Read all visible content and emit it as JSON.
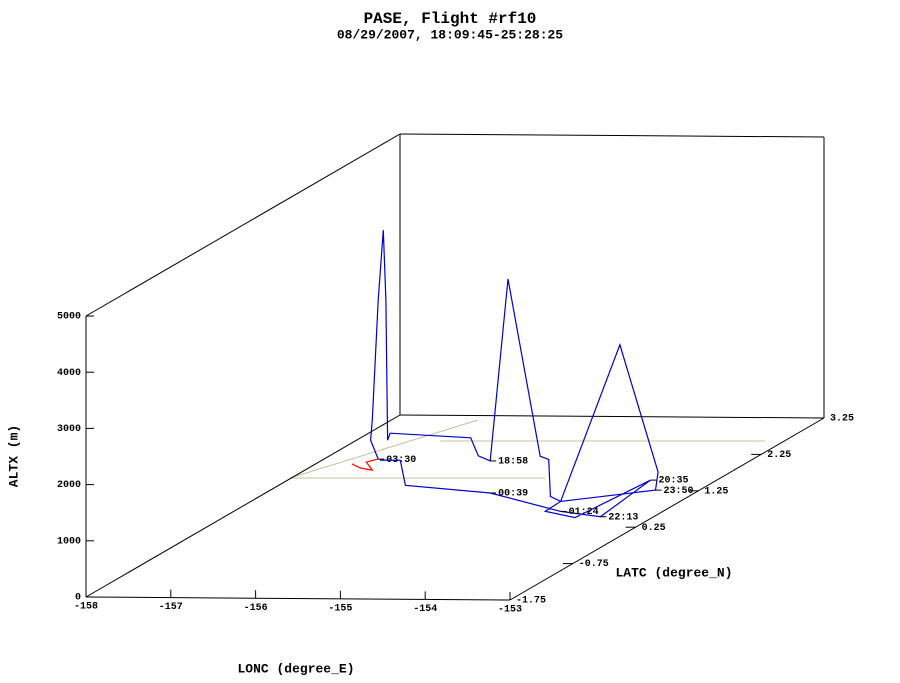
{
  "chart_data": {
    "type": "line3d",
    "title": "PASE, Flight #rf10",
    "subtitle": "08/29/2007, 18:09:45-25:28:25",
    "x_label": "LONC (degree_E)",
    "y_label": "LATC (degree_N)",
    "z_label": "ALTX (m)",
    "xlim": [
      -158,
      -153
    ],
    "xticks": [
      -158,
      -157,
      -156,
      -155,
      -154,
      -153
    ],
    "ylim": [
      -1.75,
      3.25
    ],
    "yticks": [
      -1.75,
      -0.75,
      0.25,
      1.25,
      2.25,
      3.25
    ],
    "zlim": [
      0,
      5000
    ],
    "zticks": [
      0,
      1000,
      2000,
      3000,
      4000,
      5000
    ],
    "series": [
      {
        "color": "#ff0000",
        "x": [
          -156.53,
          -156.43,
          -156.29,
          -156.36,
          -156.22
        ],
        "y": [
          0.5,
          0.5,
          0.5,
          0.5,
          0.5
        ],
        "z": [
          926,
          854,
          819,
          961,
          1015
        ],
        "time_labels": [
          null,
          null,
          null,
          null,
          "03:30"
        ]
      },
      {
        "color": "#0000cc",
        "x": [
          -156.22,
          -156.31,
          -156.29,
          -156.22,
          -156.16,
          -156.13,
          -156.11,
          -156.08,
          -155.13,
          -155.04,
          -154.9,
          -154.69,
          -154.31,
          -154.21,
          -154.19,
          -154.07,
          -153.37,
          -152.92,
          -152.95,
          -154.07,
          -154.25,
          -153.9,
          -153.01,
          -153.6,
          -154.07,
          -154.9,
          -155.9,
          -155.96,
          -156.2
        ],
        "y": [
          0.5,
          0.5,
          0.5,
          0.5,
          0.5,
          0.5,
          0.5,
          0.5,
          0.5,
          0.5,
          0.5,
          0.5,
          0.5,
          0.5,
          0.5,
          0.5,
          0.5,
          0.5,
          0.5,
          0.5,
          0.5,
          0.5,
          0.5,
          0.5,
          0.5,
          0.5,
          0.5,
          0.5,
          0.5
        ],
        "z": [
          1015,
          1353,
          1709,
          3845,
          5090,
          3845,
          1353,
          1477,
          1406,
          1086,
          997,
          4236,
          1086,
          1032,
          374,
          285,
          3079,
          819,
          498,
          285,
          107,
          0,
          676,
          18,
          107,
          427,
          552,
          997,
          997
        ],
        "time_labels": [
          null,
          null,
          null,
          null,
          null,
          null,
          null,
          null,
          null,
          null,
          "18:58",
          null,
          null,
          null,
          null,
          null,
          null,
          null,
          "23:50",
          null,
          null,
          null,
          "20:35",
          "22:13",
          "01:24",
          "00:39",
          null,
          null,
          null
        ]
      }
    ]
  }
}
